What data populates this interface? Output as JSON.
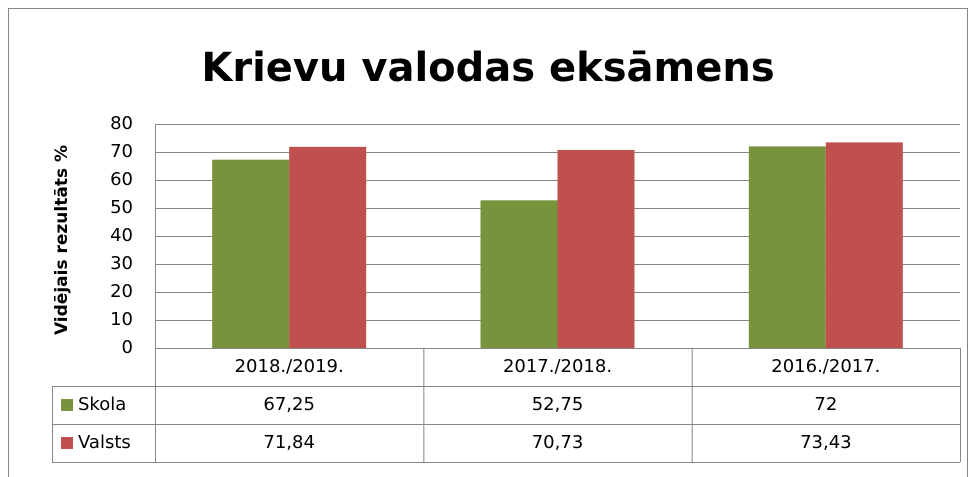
{
  "chart_data": {
    "type": "bar",
    "title": "Krievu valodas eksāmens",
    "ylabel": "Vidējais rezultāts %",
    "categories": [
      "2018./2019.",
      "2017./2018.",
      "2016./2017."
    ],
    "series": [
      {
        "name": "Skola",
        "color": "#77933c",
        "values": [
          67.25,
          52.75,
          72
        ],
        "value_labels": [
          "67,25",
          "52,75",
          "72"
        ]
      },
      {
        "name": "Valsts",
        "color": "#c0504d",
        "values": [
          71.84,
          70.73,
          73.43
        ],
        "value_labels": [
          "71,84",
          "70,73",
          "73,43"
        ]
      }
    ],
    "ylim": [
      0,
      80
    ],
    "yticks": [
      0,
      10,
      20,
      30,
      40,
      50,
      60,
      70,
      80
    ],
    "grid": true,
    "data_table": true
  }
}
